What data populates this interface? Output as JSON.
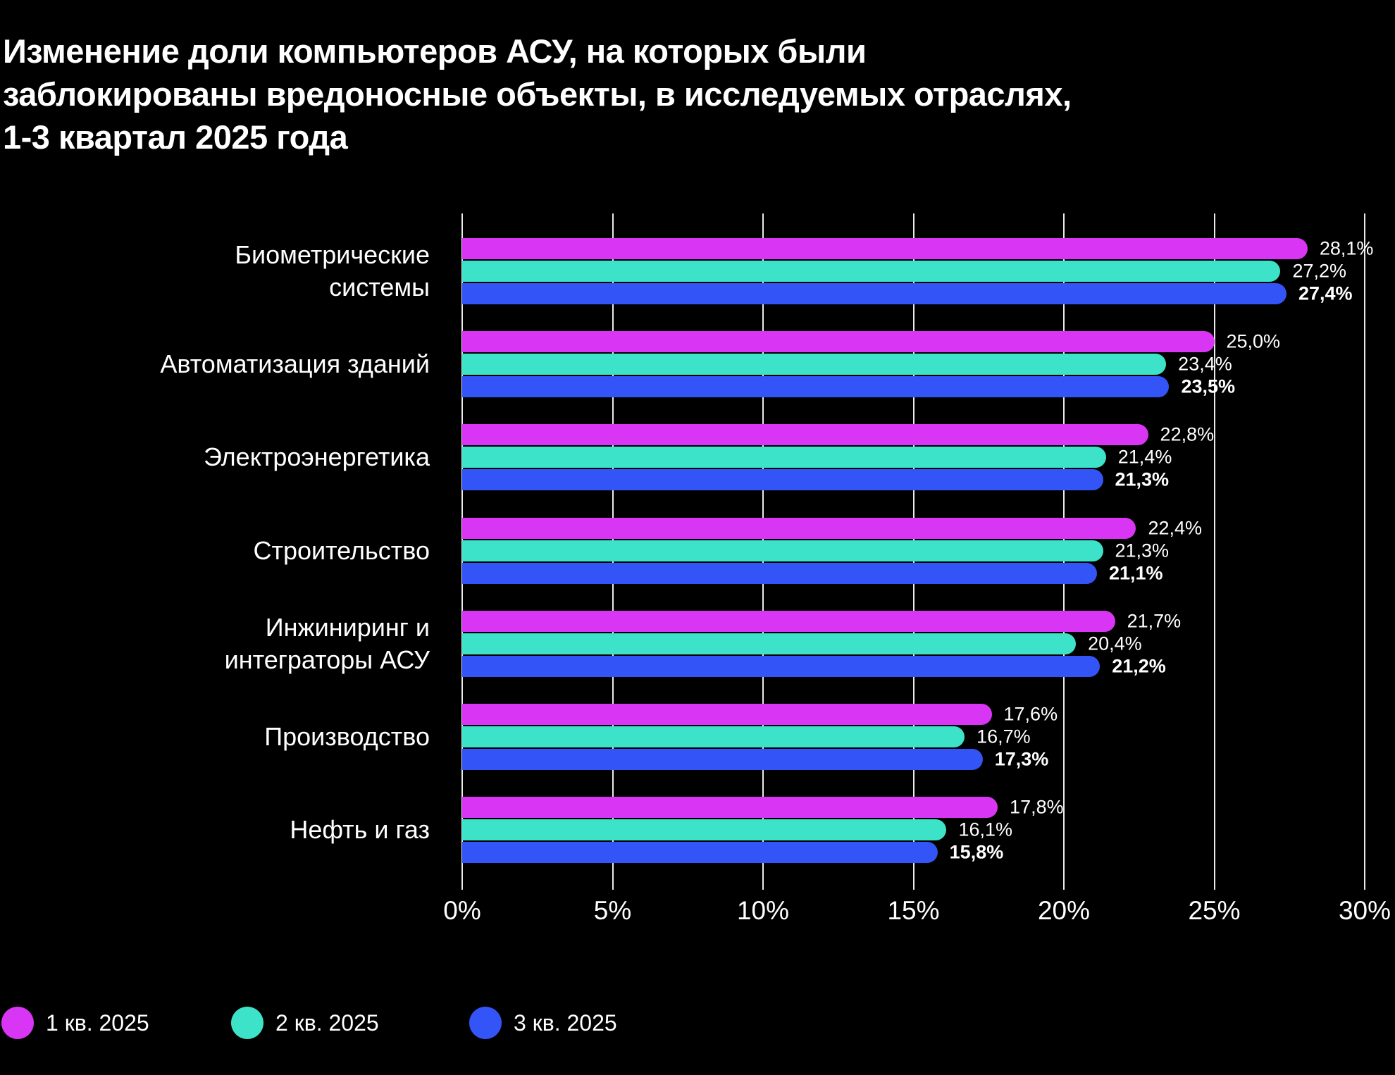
{
  "title": "Изменение доли компьютеров АСУ, на которых были\nзаблокированы вредоносные объекты, в исследуемых отраслях,\n1-3 квартал 2025 года",
  "colors": {
    "background": "#000000",
    "text": "#ffffff",
    "grid": "#ffffff",
    "q1": "#d935f5",
    "q2": "#3de3c8",
    "q3": "#3355f7"
  },
  "chart_data": {
    "type": "bar",
    "orientation": "horizontal",
    "title": "Изменение доли компьютеров АСУ, на которых были заблокированы вредоносные объекты, в исследуемых отраслях, 1-3 квартал 2025 года",
    "categories": [
      "Биометрические\nсистемы",
      "Автоматизация зданий",
      "Электроэнергетика",
      "Строительство",
      "Инжиниринг и\nинтеграторы АСУ",
      "Производство",
      "Нефть и газ"
    ],
    "series": [
      {
        "name": "1 кв. 2025",
        "color": "#d935f5",
        "values": [
          28.1,
          25.0,
          22.8,
          22.4,
          21.7,
          17.6,
          17.8
        ],
        "labels": [
          "28,1%",
          "25,0%",
          "22,8%",
          "22,4%",
          "21,7%",
          "17,6%",
          "17,8%"
        ],
        "bold_labels": false
      },
      {
        "name": "2 кв. 2025",
        "color": "#3de3c8",
        "values": [
          27.2,
          23.4,
          21.4,
          21.3,
          20.4,
          16.7,
          16.1
        ],
        "labels": [
          "27,2%",
          "23,4%",
          "21,4%",
          "21,3%",
          "20,4%",
          "16,7%",
          "16,1%"
        ],
        "bold_labels": false
      },
      {
        "name": "3 кв. 2025",
        "color": "#3355f7",
        "values": [
          27.4,
          23.5,
          21.3,
          21.1,
          21.2,
          17.3,
          15.8
        ],
        "labels": [
          "27,4%",
          "23,5%",
          "21,3%",
          "21,1%",
          "21,2%",
          "17,3%",
          "15,8%"
        ],
        "bold_labels": true
      }
    ],
    "xlim": [
      0,
      30
    ],
    "x_ticks": [
      "0%",
      "5%",
      "10%",
      "15%",
      "20%",
      "25%",
      "30%"
    ],
    "grid": true,
    "legend_position": "bottom"
  }
}
